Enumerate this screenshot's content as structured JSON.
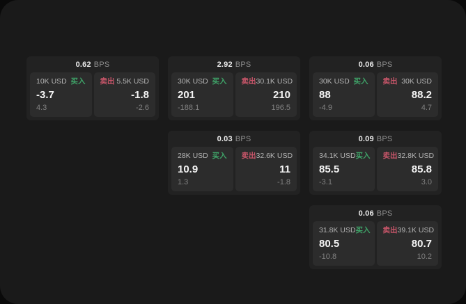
{
  "labels": {
    "bps_unit": "BPS",
    "buy": "买入",
    "sell": "卖出"
  },
  "colors": {
    "buy": "#3fa368",
    "sell": "#c9566a",
    "page_bg": "#1a1a1a",
    "card_bg": "#222222",
    "panel_bg": "#2c2c2c"
  },
  "cards": [
    {
      "row": 1,
      "col": 1,
      "bps": "0.62",
      "buy": {
        "amount": "10K USD",
        "value": "-3.7",
        "sub": "4.3"
      },
      "sell": {
        "amount": "5.5K USD",
        "value": "-1.8",
        "sub": "-2.6"
      }
    },
    {
      "row": 1,
      "col": 2,
      "bps": "2.92",
      "buy": {
        "amount": "30K USD",
        "value": "201",
        "sub": "-188.1"
      },
      "sell": {
        "amount": "30.1K USD",
        "value": "210",
        "sub": "196.5"
      }
    },
    {
      "row": 1,
      "col": 3,
      "bps": "0.06",
      "buy": {
        "amount": "30K USD",
        "value": "88",
        "sub": "-4.9"
      },
      "sell": {
        "amount": "30K USD",
        "value": "88.2",
        "sub": "4.7"
      }
    },
    {
      "row": 2,
      "col": 2,
      "bps": "0.03",
      "buy": {
        "amount": "28K USD",
        "value": "10.9",
        "sub": "1.3"
      },
      "sell": {
        "amount": "32.6K USD",
        "value": "11",
        "sub": "-1.8"
      }
    },
    {
      "row": 2,
      "col": 3,
      "bps": "0.09",
      "buy": {
        "amount": "34.1K USD",
        "value": "85.5",
        "sub": "-3.1"
      },
      "sell": {
        "amount": "32.8K USD",
        "value": "85.8",
        "sub": "3.0"
      }
    },
    {
      "row": 3,
      "col": 3,
      "bps": "0.06",
      "buy": {
        "amount": "31.8K USD",
        "value": "80.5",
        "sub": "-10.8"
      },
      "sell": {
        "amount": "39.1K USD",
        "value": "80.7",
        "sub": "10.2"
      }
    }
  ]
}
